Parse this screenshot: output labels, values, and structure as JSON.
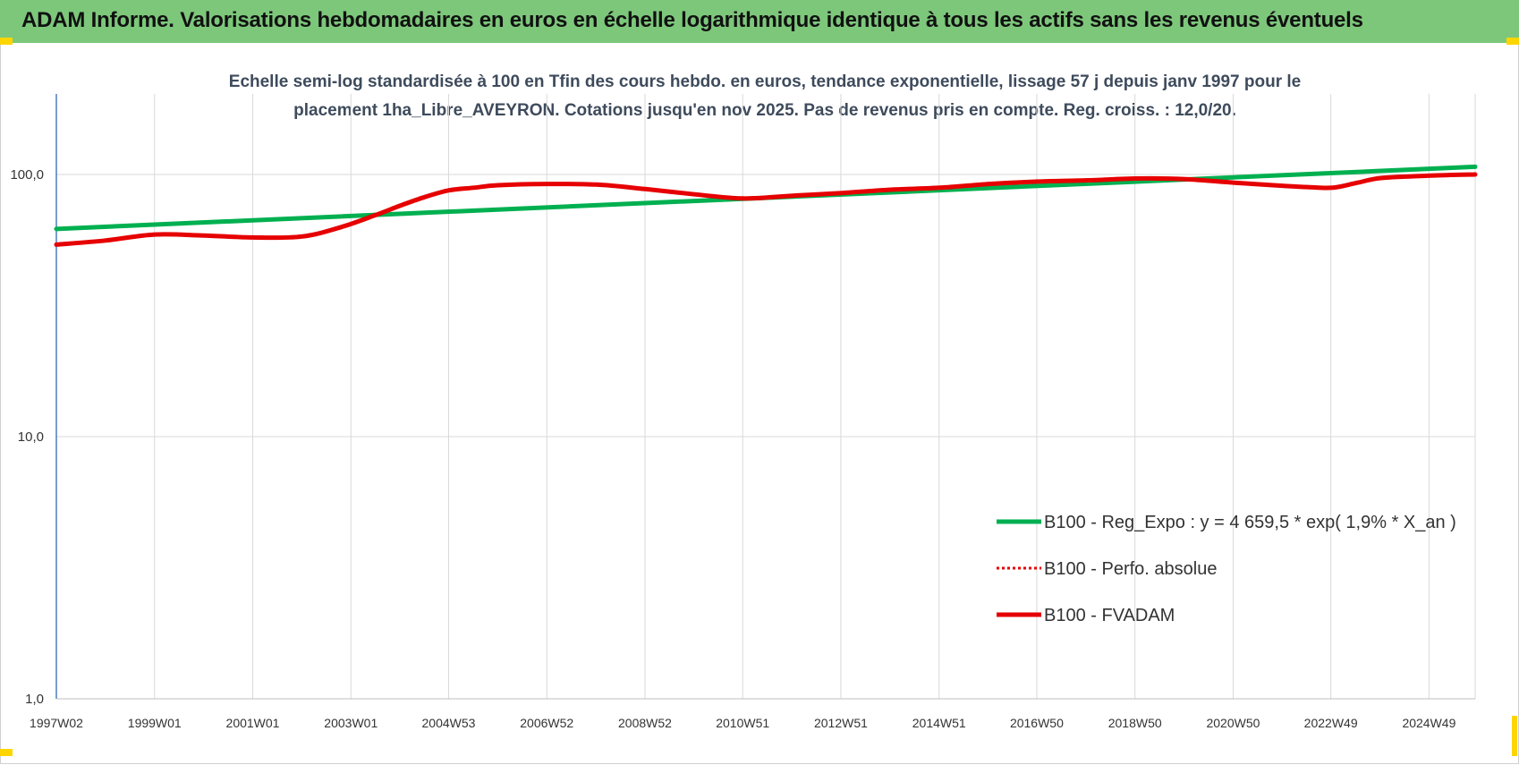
{
  "header": {
    "title": "ADAM Informe. Valorisations hebdomadaires en euros en échelle logarithmique identique à tous les actifs sans les revenus éventuels"
  },
  "colors": {
    "banner": "#7dc77b",
    "trend": "#00b050",
    "perf": "#e60000",
    "fvadam": "#e60000",
    "corner": "#ffd500"
  },
  "chart_data": {
    "type": "line",
    "title": "Echelle semi-log standardisée à 100 en Tfin des cours hebdo. en euros, tendance exponentielle, lissage 57 j depuis janv 1997 pour le placement 1ha_Libre_AVEYRON. Cotations jusqu'en nov 2025. Pas de revenus pris en compte. Reg. croiss. : 12,0/20.",
    "y_scale": "log",
    "ylim": [
      1,
      200
    ],
    "yticks": [
      1,
      10,
      100
    ],
    "ytick_labels": [
      "1,0",
      "10,0",
      "100,0"
    ],
    "xlim": [
      1997.0,
      2025.9
    ],
    "xticks": [
      1997.0,
      1999.0,
      2001.0,
      2003.0,
      2004.99,
      2006.99,
      2008.99,
      2010.98,
      2012.98,
      2014.98,
      2016.97,
      2018.97,
      2020.97,
      2022.96,
      2024.96
    ],
    "xtick_labels": [
      "1997W02",
      "1999W01",
      "2001W01",
      "2003W01",
      "2004W53",
      "2006W52",
      "2008W52",
      "2010W51",
      "2012W51",
      "2014W51",
      "2016W50",
      "2018W50",
      "2020W50",
      "2022W49",
      "2024W49"
    ],
    "grid": true,
    "legend_position": "lower-right",
    "series": [
      {
        "name": "B100 - Reg_Expo : y = 4 659,5 * exp( 1,9% *  X_an )",
        "style": "solid-green",
        "x": [
          1997.0,
          2025.9
        ],
        "y": [
          62.0,
          107.0
        ]
      },
      {
        "name": "B100 - Perfo. absolue",
        "style": "dotted-red",
        "x": [],
        "y": []
      },
      {
        "name": "B100 - FVADAM",
        "style": "solid-red",
        "x": [
          1997.0,
          1998.0,
          1999.0,
          2000.0,
          2001.0,
          2002.0,
          2002.8,
          2003.5,
          2004.0,
          2004.5,
          2005.0,
          2005.5,
          2006.0,
          2007.0,
          2008.0,
          2009.0,
          2010.0,
          2011.0,
          2012.0,
          2013.0,
          2014.0,
          2015.0,
          2016.0,
          2017.0,
          2018.0,
          2019.0,
          2020.0,
          2021.0,
          2022.0,
          2022.5,
          2023.0,
          2023.5,
          2024.0,
          2025.0,
          2025.9
        ],
        "y": [
          54,
          56,
          59,
          58.5,
          57.5,
          58,
          63,
          70,
          76,
          82,
          87,
          89,
          91,
          92,
          91.5,
          88,
          84,
          81,
          83,
          85,
          87.5,
          89,
          92,
          94,
          95,
          96.5,
          96,
          93,
          90.5,
          89.5,
          89,
          93,
          97,
          99,
          100
        ]
      }
    ]
  }
}
